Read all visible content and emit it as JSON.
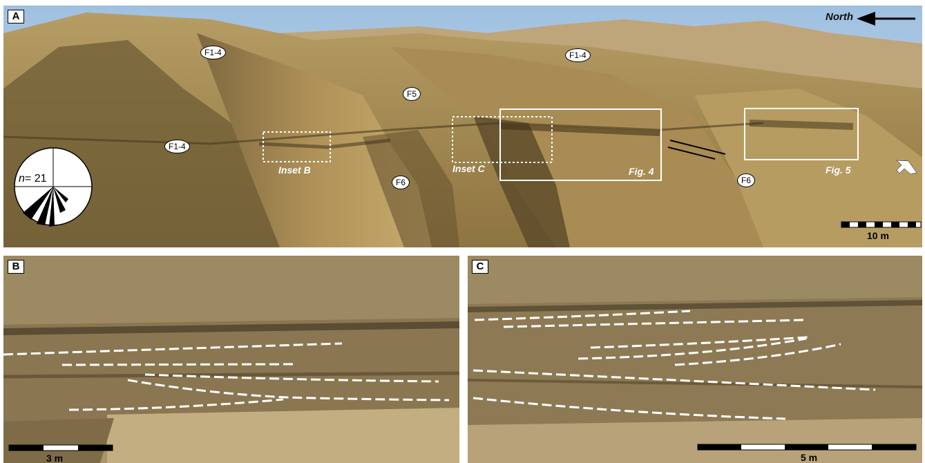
{
  "panel_a": {
    "letter": "A",
    "north_label": "North",
    "labels": [
      "F1-4",
      "F1-4",
      "F1-4",
      "F5",
      "F6",
      "F6"
    ],
    "insets": [
      "Inset B",
      "Inset C",
      "Fig. 4",
      "Fig. 5"
    ],
    "scale": "10 m",
    "rose": {
      "n_label": "n",
      "n_value": "= 21"
    }
  },
  "panel_b": {
    "letter": "B",
    "scale": "3 m"
  },
  "panel_c": {
    "letter": "C",
    "scale": "5 m"
  }
}
